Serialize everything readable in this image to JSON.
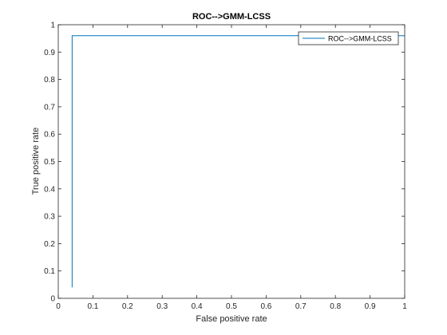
{
  "chart_data": {
    "type": "line",
    "title": "ROC-->GMM-LCSS",
    "xlabel": "False positive rate",
    "ylabel": "True positive rate",
    "xlim": [
      0,
      1
    ],
    "ylim": [
      0,
      1
    ],
    "xticks": [
      0,
      0.1,
      0.2,
      0.3,
      0.4,
      0.5,
      0.6,
      0.7,
      0.8,
      0.9,
      1
    ],
    "yticks": [
      0,
      0.1,
      0.2,
      0.3,
      0.4,
      0.5,
      0.6,
      0.7,
      0.8,
      0.9,
      1
    ],
    "xtick_labels": [
      "0",
      "0.1",
      "0.2",
      "0.3",
      "0.4",
      "0.5",
      "0.6",
      "0.7",
      "0.8",
      "0.9",
      "1"
    ],
    "ytick_labels": [
      "0",
      "0.1",
      "0.2",
      "0.3",
      "0.4",
      "0.5",
      "0.6",
      "0.7",
      "0.8",
      "0.9",
      "1"
    ],
    "grid": false,
    "legend_position": "top-right",
    "series": [
      {
        "name": "ROC-->GMM-LCSS",
        "color": "#0072bd",
        "x": [
          0.04,
          0.04,
          1.0
        ],
        "y": [
          0.04,
          0.96,
          0.96
        ]
      }
    ]
  }
}
